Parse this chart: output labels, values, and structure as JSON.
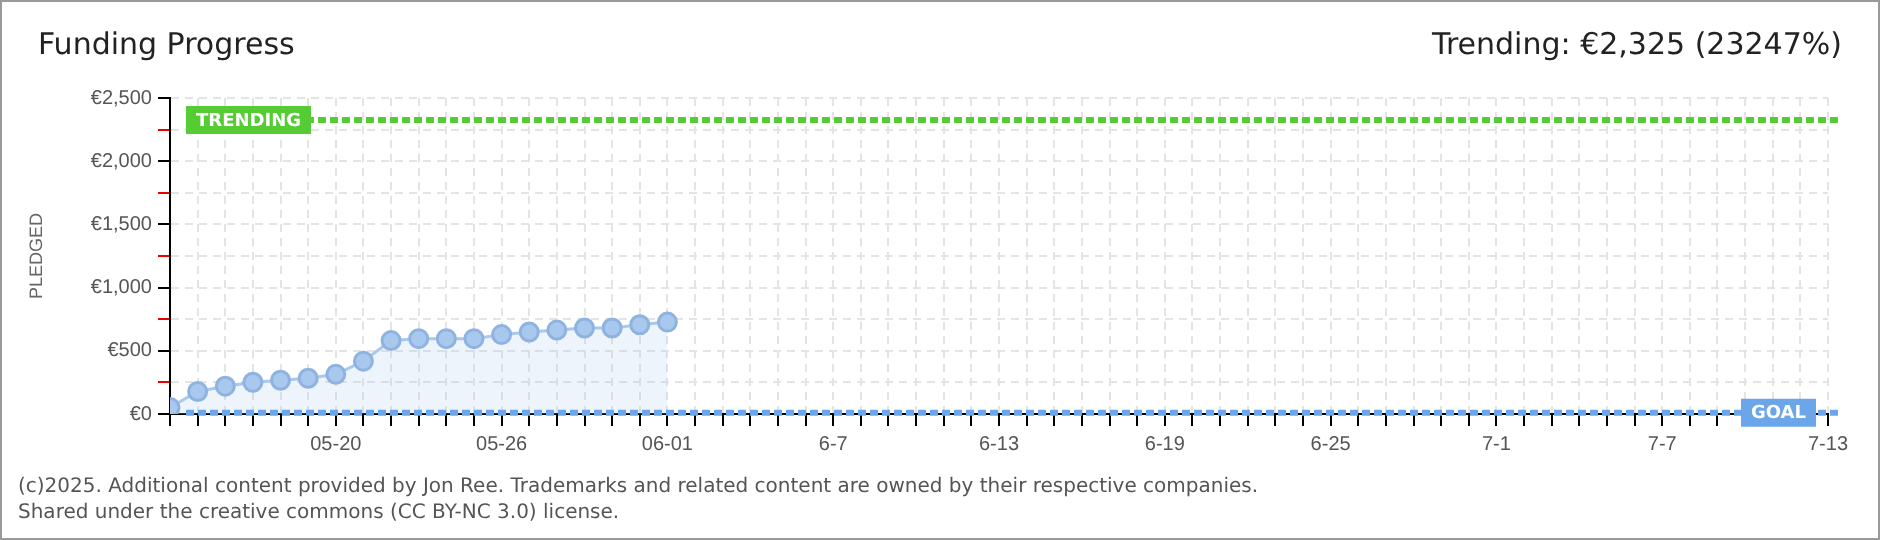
{
  "chart_data": {
    "type": "area",
    "title": "Funding Progress",
    "subtitle": "Trending: €2,325 (23247%)",
    "ylabel": "PLEDGED",
    "annotations": [
      "(c)2025. Additional content provided by Jon Ree. Trademarks and related content are owned by their respective companies.",
      "Shared under the creative commons (CC BY-NC 3.0) license."
    ],
    "x": [
      "--05-14",
      "--05-15",
      "--05-16",
      "--05-17",
      "--05-18",
      "--05-19",
      "--05-20",
      "--05-21",
      "--05-22",
      "--05-23",
      "--05-24",
      "--05-25",
      "--05-26",
      "--05-27",
      "--05-28",
      "--05-29",
      "--05-30",
      "--05-31",
      "--06-01"
    ],
    "series": [
      {
        "color": "#a9c8ee",
        "values": [
          52,
          178,
          220,
          251,
          267,
          283,
          314,
          418,
          581,
          596,
          596,
          596,
          628,
          649,
          664,
          680,
          680,
          706,
          727
        ]
      }
    ],
    "xlim": [
      "--05-14",
      "--07-13"
    ],
    "xticks": [
      {
        "value": "--05-14",
        "label": null
      },
      {
        "value": "--05-15",
        "label": null
      },
      {
        "value": "--05-16",
        "label": null
      },
      {
        "value": "--05-17",
        "label": null
      },
      {
        "value": "--05-18",
        "label": null
      },
      {
        "value": "--05-19",
        "label": null
      },
      {
        "value": "--05-20",
        "label": "05-20"
      },
      {
        "value": "--05-21",
        "label": null
      },
      {
        "value": "--05-22",
        "label": null
      },
      {
        "value": "--05-23",
        "label": null
      },
      {
        "value": "--05-24",
        "label": null
      },
      {
        "value": "--05-25",
        "label": null
      },
      {
        "value": "--05-26",
        "label": "05-26"
      },
      {
        "value": "--05-27",
        "label": null
      },
      {
        "value": "--05-28",
        "label": null
      },
      {
        "value": "--05-29",
        "label": null
      },
      {
        "value": "--05-30",
        "label": null
      },
      {
        "value": "--05-31",
        "label": null
      },
      {
        "value": "--06-01",
        "label": "06-01"
      },
      {
        "value": "--06-02",
        "label": null
      },
      {
        "value": "--06-03",
        "label": null
      },
      {
        "value": "--06-04",
        "label": null
      },
      {
        "value": "--06-05",
        "label": null
      },
      {
        "value": "--06-06",
        "label": null
      },
      {
        "value": "--06-07",
        "label": "6-7"
      },
      {
        "value": "--06-08",
        "label": null
      },
      {
        "value": "--06-09",
        "label": null
      },
      {
        "value": "--06-10",
        "label": null
      },
      {
        "value": "--06-11",
        "label": null
      },
      {
        "value": "--06-12",
        "label": null
      },
      {
        "value": "--06-13",
        "label": "6-13"
      },
      {
        "value": "--06-14",
        "label": null
      },
      {
        "value": "--06-15",
        "label": null
      },
      {
        "value": "--06-16",
        "label": null
      },
      {
        "value": "--06-17",
        "label": null
      },
      {
        "value": "--06-18",
        "label": null
      },
      {
        "value": "--06-19",
        "label": "6-19"
      },
      {
        "value": "--06-20",
        "label": null
      },
      {
        "value": "--06-21",
        "label": null
      },
      {
        "value": "--06-22",
        "label": null
      },
      {
        "value": "--06-23",
        "label": null
      },
      {
        "value": "--06-24",
        "label": null
      },
      {
        "value": "--06-25",
        "label": "6-25"
      },
      {
        "value": "--06-26",
        "label": null
      },
      {
        "value": "--06-27",
        "label": null
      },
      {
        "value": "--06-28",
        "label": null
      },
      {
        "value": "--06-29",
        "label": null
      },
      {
        "value": "--06-30",
        "label": null
      },
      {
        "value": "--07-01",
        "label": "7-1"
      },
      {
        "value": "--07-02",
        "label": null
      },
      {
        "value": "--07-03",
        "label": null
      },
      {
        "value": "--07-04",
        "label": null
      },
      {
        "value": "--07-05",
        "label": null
      },
      {
        "value": "--07-06",
        "label": null
      },
      {
        "value": "--07-07",
        "label": "7-7"
      },
      {
        "value": "--07-08",
        "label": null
      },
      {
        "value": "--07-09",
        "label": null
      },
      {
        "value": "--07-10",
        "label": null
      },
      {
        "value": "--07-11",
        "label": null
      },
      {
        "value": "--07-12",
        "label": null
      },
      {
        "value": "--07-13",
        "label": "7-13"
      }
    ],
    "ylim": [
      0,
      2500
    ],
    "yticks": [
      {
        "value": 0,
        "label": "€0"
      },
      {
        "value": 250,
        "label": null
      },
      {
        "value": 500,
        "label": "€500"
      },
      {
        "value": 750,
        "label": null
      },
      {
        "value": 1000,
        "label": "€1,000"
      },
      {
        "value": 1250,
        "label": null
      },
      {
        "value": 1500,
        "label": "€1,500"
      },
      {
        "value": 1750,
        "label": null
      },
      {
        "value": 2000,
        "label": "€2,000"
      },
      {
        "value": 2250,
        "label": null
      },
      {
        "value": 2500,
        "label": "€2,500"
      }
    ],
    "ref_lines": [
      {
        "axis": "y",
        "value": 2325,
        "label": "TRENDING",
        "color": "#55cc33",
        "line_style": "dashed"
      },
      {
        "axis": "y",
        "value": 10,
        "label": "GOAL",
        "color": "#6aa6e8",
        "line_style": "dashed"
      }
    ],
    "grid": true,
    "marker": "circle",
    "line_style": "solid",
    "legend": false
  }
}
